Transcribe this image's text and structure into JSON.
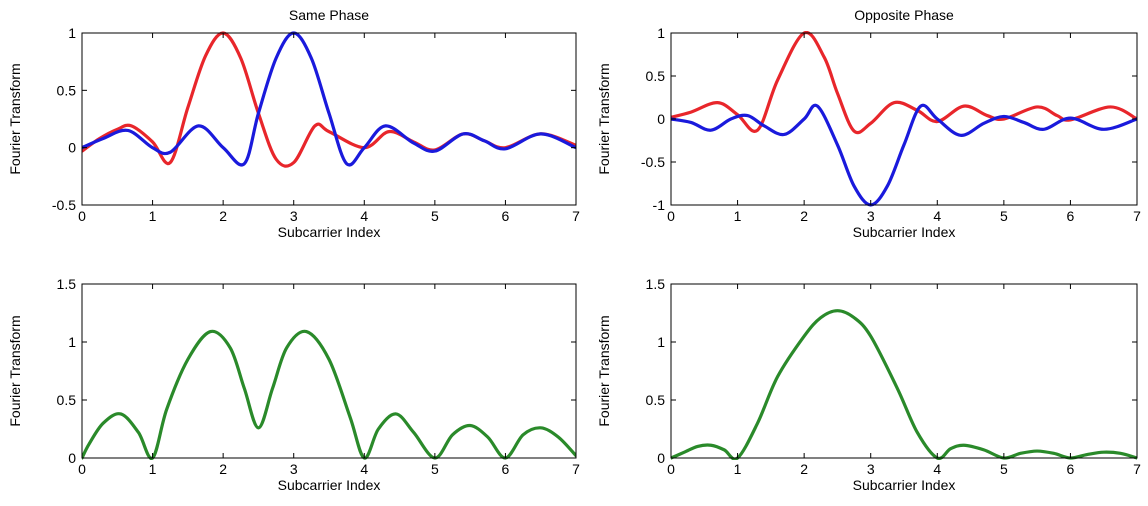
{
  "chart_data": [
    {
      "type": "line",
      "title": "Same Phase",
      "xlabel": "Subcarrier Index",
      "ylabel": "Fourier Transform",
      "xlim": [
        0,
        7
      ],
      "ylim": [
        -0.5,
        1
      ],
      "xticks": [
        "0",
        "1",
        "2",
        "3",
        "4",
        "5",
        "6",
        "7"
      ],
      "yticks": [
        "-0.5",
        "0",
        "0.5",
        "1"
      ],
      "grid": false,
      "series": [
        {
          "color": "#e8262b",
          "x": [
            0,
            0.25,
            0.5,
            0.7,
            1.0,
            1.25,
            1.5,
            1.75,
            2.0,
            2.25,
            2.5,
            2.75,
            3.0,
            3.3,
            3.5,
            4.0,
            4.35,
            4.7,
            5.0,
            5.4,
            5.7,
            6.0,
            6.5,
            7.0
          ],
          "y": [
            -0.03,
            0.08,
            0.16,
            0.19,
            0.05,
            -0.13,
            0.35,
            0.8,
            1.0,
            0.78,
            0.3,
            -0.1,
            -0.13,
            0.19,
            0.14,
            0.0,
            0.14,
            0.05,
            -0.02,
            0.12,
            0.06,
            0.0,
            0.12,
            0.02
          ]
        },
        {
          "color": "#1a1adc",
          "x": [
            0,
            0.3,
            0.65,
            1.0,
            1.25,
            1.65,
            2.0,
            2.3,
            2.5,
            2.75,
            3.0,
            3.25,
            3.5,
            3.75,
            4.0,
            4.3,
            4.7,
            5.0,
            5.4,
            5.7,
            6.0,
            6.5,
            7.0
          ],
          "y": [
            0.0,
            0.08,
            0.15,
            0.0,
            -0.04,
            0.19,
            0.0,
            -0.14,
            0.3,
            0.78,
            1.0,
            0.78,
            0.3,
            -0.14,
            0.0,
            0.19,
            0.04,
            -0.03,
            0.12,
            0.06,
            -0.01,
            0.12,
            0.0
          ]
        }
      ]
    },
    {
      "type": "line",
      "title": "Opposite Phase",
      "xlabel": "Subcarrier Index",
      "ylabel": "Fourier Transform",
      "xlim": [
        0,
        7
      ],
      "ylim": [
        -1,
        1
      ],
      "xticks": [
        "0",
        "1",
        "2",
        "3",
        "4",
        "5",
        "6",
        "7"
      ],
      "yticks": [
        "-1",
        "-0.5",
        "0",
        "0.5",
        "1"
      ],
      "grid": false,
      "series": [
        {
          "color": "#e8262b",
          "x": [
            0,
            0.3,
            0.7,
            1.0,
            1.3,
            1.6,
            2.0,
            2.3,
            2.5,
            2.75,
            3.0,
            3.35,
            3.7,
            4.0,
            4.4,
            4.75,
            5.0,
            5.5,
            5.8,
            6.0,
            6.6,
            7.0
          ],
          "y": [
            0.02,
            0.08,
            0.19,
            0.05,
            -0.13,
            0.45,
            1.0,
            0.72,
            0.3,
            -0.14,
            -0.05,
            0.19,
            0.1,
            -0.03,
            0.15,
            0.04,
            0.0,
            0.14,
            0.04,
            -0.01,
            0.14,
            0.0
          ],
          "smooth": true
        },
        {
          "color": "#1a1adc",
          "x": [
            0,
            0.3,
            0.6,
            0.9,
            1.15,
            1.4,
            1.7,
            2.0,
            2.2,
            2.5,
            2.75,
            3.0,
            3.25,
            3.5,
            3.75,
            4.0,
            4.35,
            4.7,
            5.0,
            5.3,
            5.6,
            6.0,
            6.5,
            7.0
          ],
          "y": [
            0.0,
            -0.04,
            -0.13,
            0.0,
            0.04,
            -0.08,
            -0.18,
            0.0,
            0.15,
            -0.3,
            -0.78,
            -1.0,
            -0.78,
            -0.3,
            0.15,
            0.0,
            -0.19,
            -0.05,
            0.03,
            -0.04,
            -0.12,
            0.01,
            -0.12,
            0.0
          ],
          "smooth": true
        }
      ]
    },
    {
      "type": "line",
      "xlabel": "Subcarrier Index",
      "ylabel": "Fourier Transform",
      "xlim": [
        0,
        7
      ],
      "ylim": [
        0,
        1.5
      ],
      "xticks": [
        "0",
        "1",
        "2",
        "3",
        "4",
        "5",
        "6",
        "7"
      ],
      "yticks": [
        "0",
        "0.5",
        "1",
        "1.5"
      ],
      "grid": false,
      "series": [
        {
          "color": "#2a8a2a",
          "x": [
            0,
            0.1,
            0.3,
            0.55,
            0.8,
            1.0,
            1.2,
            1.5,
            1.82,
            2.1,
            2.3,
            2.5,
            2.7,
            2.9,
            3.18,
            3.5,
            3.8,
            4.0,
            4.2,
            4.45,
            4.7,
            5.0,
            5.25,
            5.5,
            5.75,
            6.0,
            6.25,
            6.5,
            6.75,
            7.0
          ],
          "y": [
            0.0,
            0.12,
            0.3,
            0.38,
            0.22,
            0.0,
            0.42,
            0.85,
            1.09,
            0.95,
            0.6,
            0.26,
            0.6,
            0.95,
            1.09,
            0.85,
            0.35,
            0.0,
            0.25,
            0.38,
            0.22,
            0.0,
            0.2,
            0.28,
            0.18,
            0.0,
            0.2,
            0.26,
            0.18,
            0.02
          ],
          "smooth": true
        }
      ]
    },
    {
      "type": "line",
      "xlabel": "Subcarrier Index",
      "ylabel": "Fourier Transform",
      "xlim": [
        0,
        7
      ],
      "ylim": [
        0,
        1.5
      ],
      "xticks": [
        "0",
        "1",
        "2",
        "3",
        "4",
        "5",
        "6",
        "7"
      ],
      "yticks": [
        "0",
        "0.5",
        "1",
        "1.5"
      ],
      "grid": false,
      "series": [
        {
          "color": "#2a8a2a",
          "x": [
            0,
            0.2,
            0.4,
            0.6,
            0.8,
            1.0,
            1.3,
            1.6,
            2.0,
            2.25,
            2.5,
            2.75,
            3.0,
            3.4,
            3.7,
            4.0,
            4.2,
            4.4,
            4.7,
            5.0,
            5.25,
            5.5,
            5.75,
            6.0,
            6.25,
            6.5,
            6.75,
            7.0
          ],
          "y": [
            0.0,
            0.05,
            0.1,
            0.11,
            0.07,
            0.0,
            0.3,
            0.7,
            1.05,
            1.21,
            1.27,
            1.21,
            1.05,
            0.6,
            0.22,
            0.0,
            0.08,
            0.11,
            0.07,
            0.0,
            0.04,
            0.06,
            0.04,
            0.0,
            0.03,
            0.05,
            0.04,
            0.0
          ],
          "smooth": true
        }
      ]
    }
  ]
}
